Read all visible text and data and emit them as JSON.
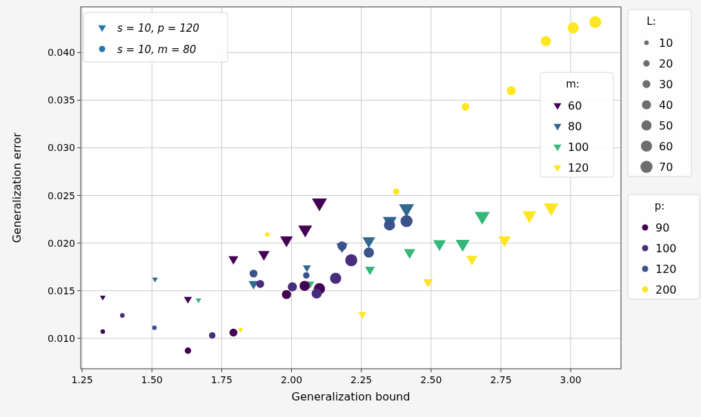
{
  "chart_data": {
    "type": "bubble",
    "xlabel": "Generalization bound",
    "ylabel": "Generalization error",
    "xlim": [
      1.245,
      3.18
    ],
    "ylim": [
      0.0068,
      0.0448
    ],
    "xticks": [
      {
        "value": 1.25,
        "label": "1.25"
      },
      {
        "value": 1.5,
        "label": "1.50"
      },
      {
        "value": 1.75,
        "label": "1.75"
      },
      {
        "value": 2,
        "label": "2.00"
      },
      {
        "value": 2.25,
        "label": "2.25"
      },
      {
        "value": 2.5,
        "label": "2.50"
      },
      {
        "value": 2.75,
        "label": "2.75"
      },
      {
        "value": 3,
        "label": "3.00"
      }
    ],
    "yticks": [
      {
        "value": 0.01,
        "label": "0.010"
      },
      {
        "value": 0.015,
        "label": "0.015"
      },
      {
        "value": 0.02,
        "label": "0.020"
      },
      {
        "value": 0.025,
        "label": "0.025"
      },
      {
        "value": 0.03,
        "label": "0.030"
      },
      {
        "value": 0.035,
        "label": "0.035"
      },
      {
        "value": 0.04,
        "label": "0.040"
      }
    ],
    "grid": true,
    "legend": "right",
    "legend_title": "m:",
    "size_legend": [
      10,
      20,
      30,
      40,
      50,
      60,
      70
    ],
    "annotations": [
      "L:",
      "p:",
      "s = 10, p = 120",
      "s = 10, m = 80"
    ],
    "series": [
      {
        "name": "60",
        "color": "#440154",
        "marker": "triangle",
        "x": [
          1.324,
          1.629,
          1.792,
          1.901,
          1.982,
          2.049,
          2.1
        ],
        "values": [
          0.0143,
          0.0141,
          0.0183,
          0.0188,
          0.0203,
          0.0214,
          0.0242
        ],
        "sizes": [
          10,
          20,
          30,
          40,
          50,
          60,
          70
        ]
      },
      {
        "name": "80",
        "color": "#31688e",
        "marker": "triangle",
        "x": [
          1.511,
          2.055,
          1.864,
          2.181,
          2.277,
          2.352,
          2.412
        ],
        "values": [
          0.0162,
          0.0174,
          0.0157,
          0.0196,
          0.0202,
          0.0223,
          0.0236
        ],
        "sizes": [
          10,
          20,
          30,
          40,
          50,
          60,
          70
        ]
      },
      {
        "name": "100",
        "color": "#35b779",
        "marker": "triangle",
        "x": [
          1.667,
          2.067,
          2.281,
          2.423,
          2.53,
          2.613,
          2.683
        ],
        "values": [
          0.014,
          0.0157,
          0.0172,
          0.019,
          0.0199,
          0.0199,
          0.0228
        ],
        "sizes": [
          10,
          20,
          30,
          40,
          50,
          60,
          70
        ]
      },
      {
        "name": "120",
        "color": "#fde725",
        "marker": "triangle",
        "x": [
          1.817,
          2.254,
          2.489,
          2.646,
          2.763,
          2.852,
          2.93
        ],
        "values": [
          0.0109,
          0.0125,
          0.0159,
          0.0183,
          0.0203,
          0.0229,
          0.0237
        ],
        "sizes": [
          10,
          20,
          30,
          40,
          50,
          60,
          70
        ]
      },
      {
        "name": "90",
        "color": "#440154",
        "marker": "circle",
        "x": [
          1.324,
          1.629,
          1.792,
          1.982,
          2.047,
          2.1
        ],
        "values": [
          0.0107,
          0.0087,
          0.0106,
          0.0146,
          0.0155,
          0.0152
        ],
        "sizes": [
          10,
          20,
          30,
          40,
          50,
          60
        ]
      },
      {
        "name": "100",
        "color": "#472d7b",
        "marker": "circle",
        "x": [
          1.394,
          1.716,
          1.888,
          2.003,
          2.09,
          2.158,
          2.214
        ],
        "values": [
          0.0124,
          0.0103,
          0.0157,
          0.0154,
          0.0147,
          0.0163,
          0.0182
        ],
        "sizes": [
          10,
          20,
          30,
          40,
          50,
          60,
          70
        ]
      },
      {
        "name": "120",
        "color": "#3b528b",
        "marker": "circle",
        "x": [
          1.509,
          2.053,
          1.864,
          2.181,
          2.277,
          2.351,
          2.412
        ],
        "values": [
          0.0111,
          0.0166,
          0.0168,
          0.0197,
          0.019,
          0.0219,
          0.0223
        ],
        "sizes": [
          10,
          20,
          30,
          40,
          50,
          60,
          70
        ]
      },
      {
        "name": "200",
        "color": "#fde725",
        "marker": "circle",
        "x": [
          1.913,
          2.375,
          2.623,
          2.787,
          2.911,
          3.009,
          3.088
        ],
        "values": [
          0.0209,
          0.0254,
          0.0343,
          0.036,
          0.0412,
          0.0426,
          0.0432
        ],
        "sizes": [
          10,
          20,
          30,
          40,
          50,
          60,
          70
        ]
      }
    ]
  }
}
